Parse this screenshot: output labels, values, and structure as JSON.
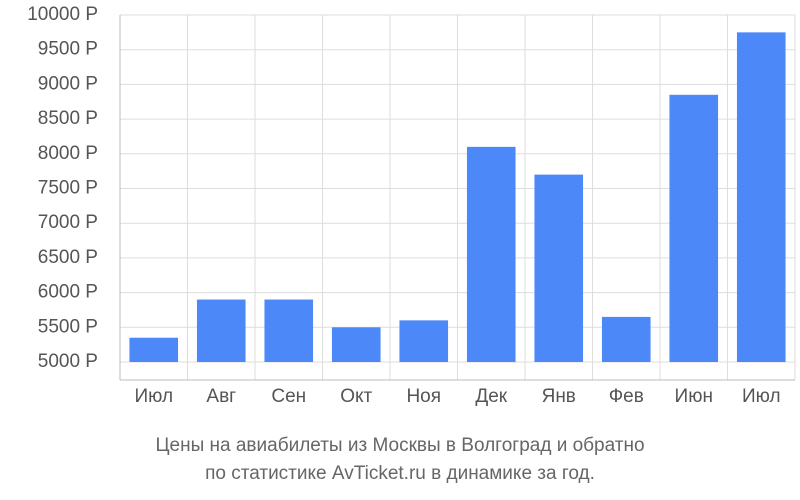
{
  "chart_data": {
    "type": "bar",
    "caption": [
      "Цены на авиабилеты из Москвы в Волгоград и обратно",
      "по статистике AvTicket.ru в динамике за год."
    ],
    "categories": [
      "Июл",
      "Авг",
      "Сен",
      "Окт",
      "Ноя",
      "Дек",
      "Янв",
      "Фев",
      "Июн",
      "Июл"
    ],
    "values": [
      5350,
      5900,
      5900,
      5500,
      5600,
      8100,
      7700,
      5650,
      8850,
      9750
    ],
    "color": "#4d88f9",
    "ylim": [
      5000,
      10000
    ],
    "yticks": [
      {
        "value": 5000,
        "label": "5000 Р"
      },
      {
        "value": 5500,
        "label": "5500 Р"
      },
      {
        "value": 6000,
        "label": "6000 Р"
      },
      {
        "value": 6500,
        "label": "6500 Р"
      },
      {
        "value": 7000,
        "label": "7000 Р"
      },
      {
        "value": 7500,
        "label": "7500 Р"
      },
      {
        "value": 8000,
        "label": "8000 Р"
      },
      {
        "value": 8500,
        "label": "8500 Р"
      },
      {
        "value": 9000,
        "label": "9000 Р"
      },
      {
        "value": 9500,
        "label": "9500 Р"
      },
      {
        "value": 10000,
        "label": "10000 Р"
      }
    ],
    "grid": true
  }
}
